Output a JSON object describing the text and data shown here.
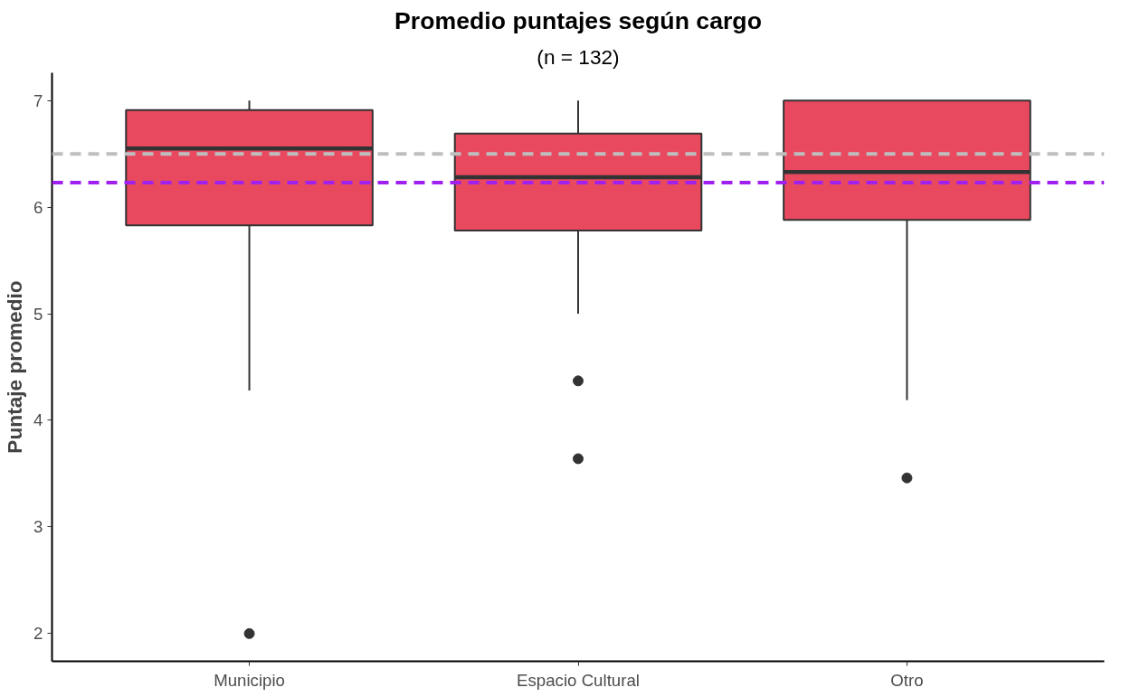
{
  "chart_data": {
    "type": "box",
    "title": "Promedio puntajes según cargo",
    "subtitle": "(n = 132)",
    "ylabel": "Puntaje promedio",
    "categories": [
      "Municipio",
      "Espacio Cultural",
      "Otro"
    ],
    "color": "#e8495f",
    "boxes": [
      {
        "low": 4.28,
        "q1": 5.83,
        "median": 6.55,
        "q3": 6.91,
        "high": 7.0,
        "outliers": [
          2.0
        ]
      },
      {
        "low": 5.0,
        "q1": 5.78,
        "median": 6.28,
        "q3": 6.69,
        "high": 7.0,
        "outliers": [
          4.37,
          3.64
        ]
      },
      {
        "low": 4.19,
        "q1": 5.88,
        "median": 6.33,
        "q3": 7.0,
        "high": 7.0,
        "outliers": [
          3.46
        ]
      }
    ],
    "ref_lines": [
      {
        "axis": "y",
        "value": 6.5,
        "label": null,
        "color": "#bebebe",
        "line_style": "dashed"
      },
      {
        "axis": "y",
        "value": 6.23,
        "label": null,
        "color": "#a020f0",
        "line_style": "dashed"
      }
    ],
    "ylim": [
      1.74,
      7.26
    ],
    "yticks": [
      2,
      3,
      4,
      5,
      6,
      7
    ],
    "grid": false
  }
}
